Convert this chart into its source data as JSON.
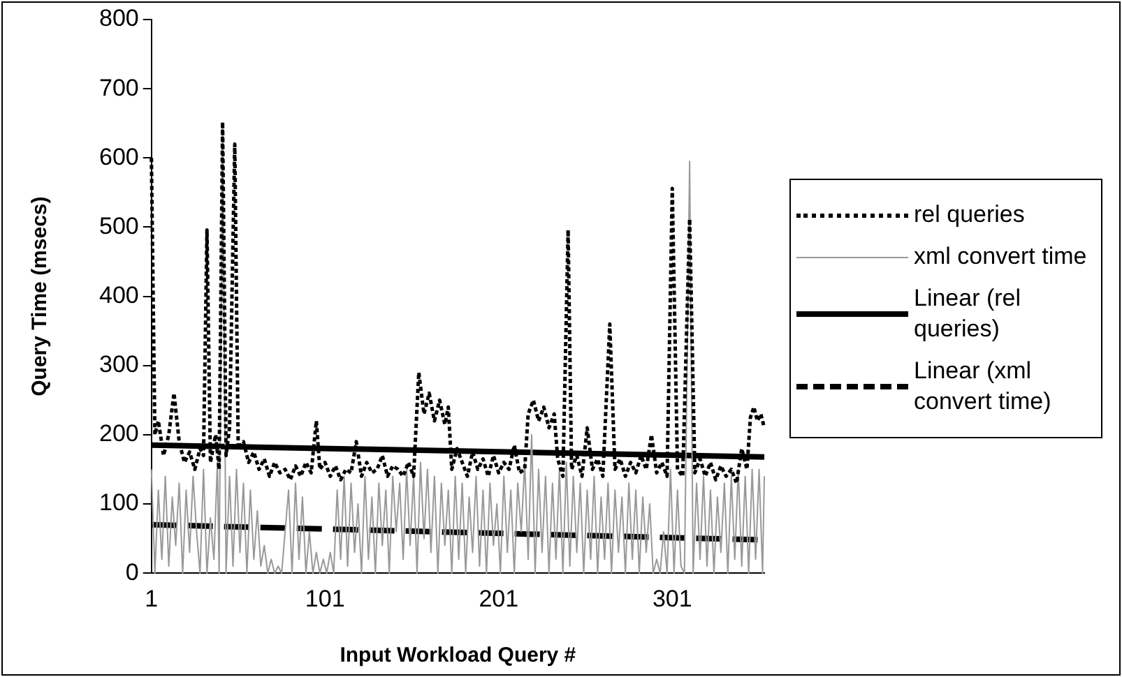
{
  "chart_data": {
    "type": "line",
    "xlabel": "Input Workload Query #",
    "ylabel": "Query Time (msecs)",
    "xlim": [
      1,
      354
    ],
    "xticks": [
      1,
      101,
      201,
      301
    ],
    "ylim": [
      0,
      800
    ],
    "yticks": [
      0,
      100,
      200,
      300,
      400,
      500,
      600,
      700,
      800
    ],
    "grid": false,
    "legend": "right",
    "marker": "none",
    "series": [
      {
        "name": "rel queries",
        "color": "#000000",
        "line_style": "dotted",
        "x": [
          1,
          3,
          5,
          8,
          11,
          14,
          17,
          20,
          23,
          26,
          29,
          31,
          33,
          35,
          38,
          40,
          42,
          44,
          46,
          49,
          51,
          54,
          57,
          60,
          63,
          66,
          69,
          72,
          75,
          78,
          81,
          84,
          87,
          90,
          93,
          96,
          98,
          101,
          104,
          107,
          110,
          113,
          116,
          119,
          122,
          125,
          128,
          131,
          134,
          137,
          140,
          143,
          146,
          149,
          152,
          155,
          158,
          161,
          164,
          167,
          170,
          172,
          174,
          177,
          180,
          183,
          186,
          189,
          192,
          195,
          198,
          201,
          204,
          207,
          210,
          213,
          216,
          218,
          221,
          224,
          227,
          230,
          233,
          235,
          238,
          241,
          243,
          246,
          249,
          252,
          255,
          258,
          261,
          265,
          268,
          271,
          274,
          277,
          280,
          283,
          286,
          289,
          292,
          295,
          298,
          301,
          304,
          307,
          311,
          314,
          317,
          320,
          323,
          326,
          329,
          332,
          335,
          338,
          341,
          344,
          346,
          348,
          350,
          352,
          354
        ],
        "values": [
          600,
          200,
          220,
          170,
          200,
          260,
          190,
          160,
          175,
          150,
          180,
          170,
          496,
          160,
          200,
          150,
          652,
          170,
          210,
          620,
          180,
          190,
          160,
          175,
          150,
          165,
          140,
          160,
          145,
          150,
          135,
          155,
          140,
          160,
          145,
          220,
          150,
          160,
          140,
          155,
          135,
          150,
          145,
          190,
          140,
          160,
          145,
          150,
          170,
          140,
          155,
          150,
          140,
          160,
          140,
          290,
          230,
          260,
          220,
          250,
          215,
          240,
          150,
          180,
          160,
          140,
          175,
          150,
          165,
          140,
          170,
          145,
          160,
          150,
          185,
          145,
          150,
          230,
          250,
          220,
          240,
          210,
          230,
          165,
          140,
          496,
          150,
          170,
          140,
          210,
          150,
          165,
          140,
          360,
          150,
          165,
          140,
          160,
          145,
          170,
          150,
          200,
          145,
          160,
          140,
          556,
          150,
          140,
          512,
          145,
          165,
          140,
          160,
          135,
          155,
          140,
          150,
          130,
          180,
          150,
          225,
          240,
          220,
          230,
          210
        ]
      },
      {
        "name": "xml convert time",
        "color": "#999999",
        "line_style": "solid",
        "x": [
          1,
          3,
          5,
          7,
          9,
          11,
          13,
          15,
          17,
          19,
          21,
          23,
          25,
          27,
          29,
          31,
          33,
          35,
          37,
          39,
          40,
          42,
          44,
          46,
          48,
          50,
          52,
          54,
          56,
          58,
          60,
          62,
          64,
          66,
          68,
          70,
          72,
          74,
          76,
          80,
          82,
          84,
          86,
          88,
          90,
          92,
          94,
          96,
          98,
          100,
          102,
          104,
          106,
          108,
          110,
          112,
          114,
          116,
          118,
          120,
          122,
          124,
          126,
          128,
          130,
          132,
          134,
          136,
          138,
          140,
          142,
          144,
          146,
          148,
          150,
          152,
          154,
          156,
          158,
          160,
          162,
          164,
          166,
          168,
          170,
          172,
          174,
          176,
          178,
          180,
          182,
          184,
          186,
          188,
          190,
          192,
          194,
          196,
          198,
          200,
          202,
          204,
          206,
          208,
          210,
          212,
          214,
          216,
          218,
          220,
          222,
          224,
          226,
          228,
          230,
          232,
          234,
          236,
          238,
          240,
          242,
          244,
          246,
          248,
          250,
          252,
          254,
          256,
          258,
          260,
          262,
          264,
          266,
          268,
          270,
          272,
          274,
          276,
          278,
          280,
          282,
          284,
          286,
          288,
          290,
          292,
          294,
          296,
          298,
          300,
          302,
          304,
          306,
          308,
          311,
          313,
          315,
          317,
          319,
          321,
          323,
          325,
          327,
          329,
          331,
          333,
          335,
          337,
          339,
          341,
          343,
          345,
          347,
          349,
          351,
          353,
          354
        ],
        "values": [
          150,
          0,
          120,
          20,
          140,
          10,
          110,
          40,
          130,
          0,
          120,
          30,
          140,
          60,
          0,
          150,
          0,
          80,
          20,
          160,
          0,
          650,
          0,
          140,
          10,
          150,
          30,
          130,
          0,
          120,
          20,
          90,
          10,
          40,
          0,
          20,
          0,
          10,
          0,
          120,
          0,
          130,
          20,
          110,
          0,
          60,
          0,
          30,
          0,
          20,
          0,
          30,
          0,
          120,
          20,
          140,
          10,
          130,
          30,
          100,
          0,
          140,
          20,
          110,
          0,
          130,
          40,
          120,
          0,
          140,
          60,
          130,
          20,
          150,
          40,
          140,
          0,
          160,
          50,
          150,
          30,
          140,
          0,
          130,
          40,
          120,
          0,
          140,
          20,
          130,
          0,
          110,
          30,
          140,
          10,
          120,
          0,
          130,
          40,
          100,
          0,
          140,
          30,
          120,
          0,
          130,
          60,
          160,
          20,
          200,
          0,
          150,
          30,
          140,
          0,
          130,
          20,
          150,
          0,
          160,
          10,
          140,
          30,
          130,
          0,
          120,
          20,
          140,
          0,
          110,
          20,
          130,
          0,
          120,
          30,
          110,
          0,
          130,
          20,
          120,
          0,
          110,
          30,
          100,
          0,
          20,
          0,
          60,
          0,
          150,
          0,
          120,
          10,
          0,
          595,
          0,
          130,
          20,
          140,
          10,
          120,
          0,
          110,
          30,
          130,
          0,
          140,
          20,
          150,
          10,
          140,
          0,
          150,
          20,
          150,
          0,
          140
        ]
      },
      {
        "name": "Linear (rel queries)",
        "type": "line",
        "color": "#000000",
        "line_style": "solid",
        "x": [
          1,
          354
        ],
        "values": [
          185,
          168
        ]
      },
      {
        "name": "Linear (xml convert time)",
        "type": "line",
        "color": "#000000",
        "line_style": "dashed",
        "x": [
          1,
          354
        ],
        "values": [
          70,
          48
        ]
      }
    ]
  }
}
